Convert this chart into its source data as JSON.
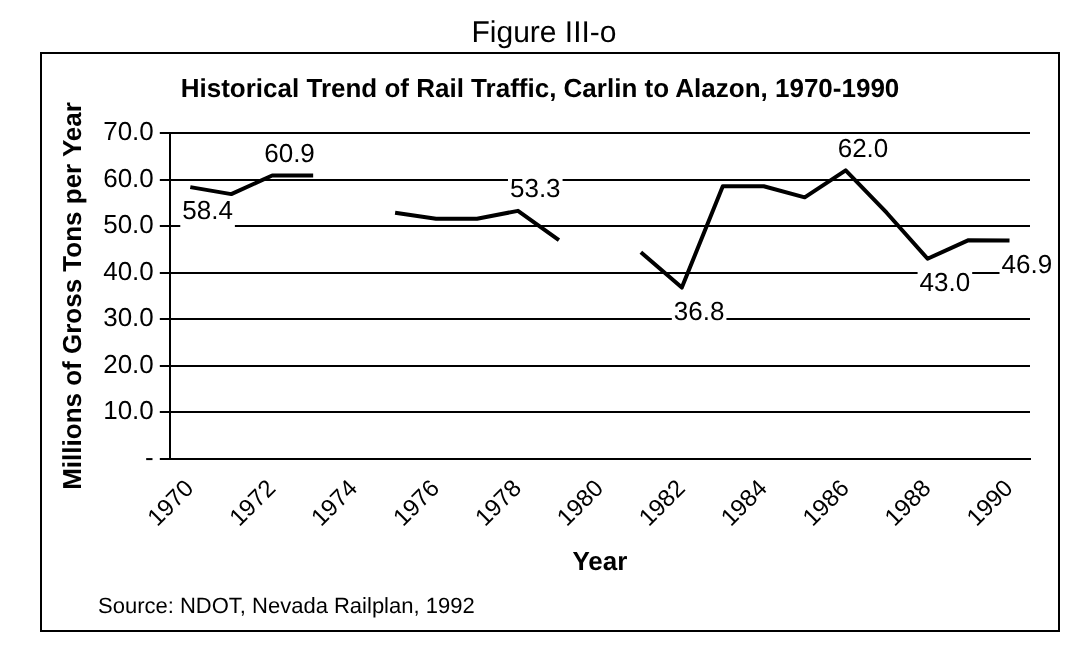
{
  "chart_data": {
    "type": "line",
    "title": "Figure III-o",
    "subtitle": "Historical Trend of Rail Traffic, Carlin to Alazon, 1970-1990",
    "xlabel": "Year",
    "ylabel": "Millions of Gross Tons per Year",
    "categories": [
      "1970",
      null,
      "1972",
      null,
      "1974",
      null,
      "1976",
      null,
      "1978",
      null,
      "1980",
      null,
      "1982",
      null,
      "1984",
      null,
      "1986",
      null,
      "1988",
      null,
      "1990"
    ],
    "series": [
      {
        "color": "#000000",
        "values": [
          58.4,
          56.9,
          60.9,
          60.9,
          null,
          52.9,
          51.6,
          51.6,
          53.3,
          47.0,
          null,
          44.4,
          36.8,
          58.6,
          58.6,
          56.2,
          62.0,
          52.9,
          43.0,
          47.0,
          46.9
        ],
        "value_labels": [
          "58.4",
          null,
          "60.9",
          null,
          null,
          null,
          null,
          null,
          "53.3",
          null,
          null,
          null,
          "36.8",
          null,
          null,
          null,
          "62.0",
          null,
          "43.0",
          null,
          "46.9"
        ]
      }
    ],
    "ylim": [
      0,
      70
    ],
    "yticks": [
      {
        "value": 0,
        "label": "-"
      },
      {
        "value": 10,
        "label": "10.0"
      },
      {
        "value": 20,
        "label": "20.0"
      },
      {
        "value": 30,
        "label": "30.0"
      },
      {
        "value": 40,
        "label": "40.0"
      },
      {
        "value": 50,
        "label": "50.0"
      },
      {
        "value": 60,
        "label": "60.0"
      },
      {
        "value": 70,
        "label": "70.0"
      }
    ],
    "grid": "y",
    "legend": false,
    "marker": "none",
    "line_style": "solid",
    "annotations": [
      "Source: NDOT, Nevada Railplan, 1992"
    ]
  }
}
